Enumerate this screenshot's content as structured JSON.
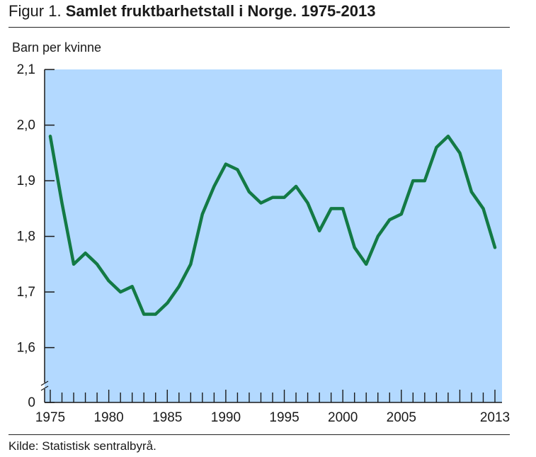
{
  "figure": {
    "label": "Figur 1.",
    "title": "Samlet fruktbarhetstall i Norge. 1975-2013",
    "source": "Kilde: Statistisk sentralbyrå."
  },
  "colors": {
    "plot_background": "#b3d9ff",
    "line": "#137a45",
    "axis": "#1a1a1a"
  },
  "chart_data": {
    "type": "line",
    "title": "Samlet fruktbarhetstall i Norge. 1975-2013",
    "ylabel": "Barn per kvinne",
    "xlabel": "",
    "x_tick_labels": [
      "1975",
      "1980",
      "1985",
      "1990",
      "1995",
      "2000",
      "2005",
      "2013"
    ],
    "y_tick_labels": [
      "0",
      "1,6",
      "1,7",
      "1,8",
      "1,9",
      "2,0",
      "2,1"
    ],
    "ylim": [
      1.5,
      2.1
    ],
    "y_axis_break": true,
    "xlim": [
      1975,
      2013
    ],
    "grid": false,
    "legend": "none",
    "x": [
      1975,
      1976,
      1977,
      1978,
      1979,
      1980,
      1981,
      1982,
      1983,
      1984,
      1985,
      1986,
      1987,
      1988,
      1989,
      1990,
      1991,
      1992,
      1993,
      1994,
      1995,
      1996,
      1997,
      1998,
      1999,
      2000,
      2001,
      2002,
      2003,
      2004,
      2005,
      2006,
      2007,
      2008,
      2009,
      2010,
      2011,
      2012,
      2013
    ],
    "series": [
      {
        "values": [
          1.98,
          1.86,
          1.75,
          1.77,
          1.75,
          1.72,
          1.7,
          1.71,
          1.66,
          1.66,
          1.68,
          1.71,
          1.75,
          1.84,
          1.89,
          1.93,
          1.92,
          1.88,
          1.86,
          1.87,
          1.87,
          1.89,
          1.86,
          1.81,
          1.85,
          1.85,
          1.78,
          1.75,
          1.8,
          1.83,
          1.84,
          1.9,
          1.9,
          1.96,
          1.98,
          1.95,
          1.88,
          1.85,
          1.78
        ]
      }
    ]
  }
}
